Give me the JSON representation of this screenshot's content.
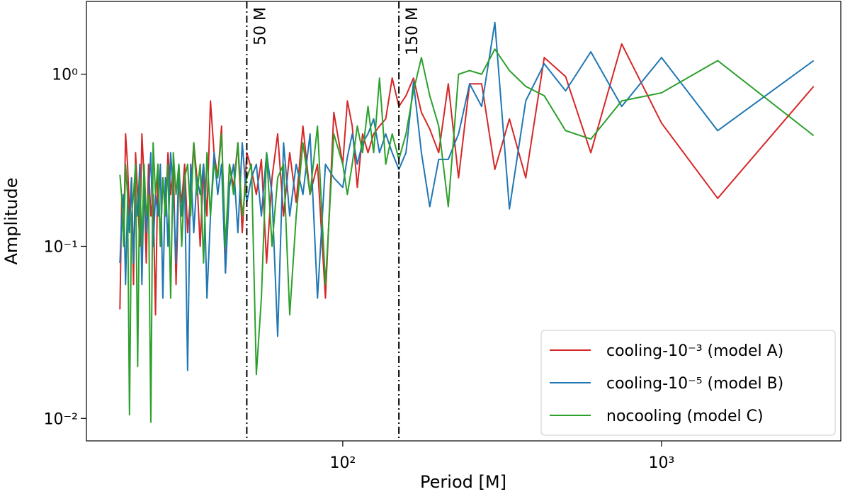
{
  "chart_data": {
    "type": "line",
    "xlabel": "Period [M]",
    "ylabel": "Amplitude",
    "xscale": "log",
    "yscale": "log",
    "xlim": [
      15.7,
      3650
    ],
    "ylim": [
      0.0074,
      2.65
    ],
    "xticks": [
      {
        "value": 100,
        "label": "10²"
      },
      {
        "value": 1000,
        "label": "10³"
      }
    ],
    "yticks": [
      {
        "value": 0.01,
        "label": "10⁻²"
      },
      {
        "value": 0.1,
        "label": "10⁻¹"
      },
      {
        "value": 1,
        "label": "10⁰"
      }
    ],
    "legend": "lower right",
    "vlines": [
      {
        "x": 50,
        "label": "50 M"
      },
      {
        "x": 150,
        "label": "150 M"
      }
    ],
    "x": [
      3000,
      1500,
      1000,
      750,
      600,
      500,
      428.6,
      375,
      333.3,
      300,
      272.7,
      250,
      230.8,
      214.3,
      200,
      187.5,
      176.5,
      166.7,
      157.9,
      150,
      142.9,
      136.4,
      130.4,
      125,
      120,
      115.4,
      111.1,
      107.1,
      103.4,
      100,
      93.75,
      88.24,
      83.33,
      78.95,
      75,
      71.43,
      68.18,
      65.22,
      62.5,
      60,
      57.69,
      55.56,
      53.57,
      51.72,
      50,
      48.39,
      46.88,
      45.45,
      44.12,
      42.86,
      41.67,
      40.54,
      39.47,
      38.46,
      37.5,
      36.59,
      35.71,
      34.88,
      34.09,
      33.33,
      32.61,
      31.91,
      31.25,
      30.61,
      30,
      29.41,
      28.85,
      28.3,
      27.78,
      27.27,
      26.79,
      26.32,
      25.86,
      25.42,
      25,
      24.59,
      24.19,
      23.81,
      23.44,
      23.08,
      22.73,
      22.39,
      22.06,
      21.74,
      21.43,
      21.13,
      20.83,
      20.55,
      20.27,
      20
    ],
    "series": [
      {
        "name": "cooling-10⁻³ (model A)",
        "color": "#d62728",
        "values": [
          0.85,
          0.19,
          0.52,
          1.5,
          0.35,
          0.97,
          1.25,
          0.25,
          0.55,
          0.28,
          0.88,
          0.88,
          0.25,
          0.88,
          0.35,
          0.48,
          0.6,
          0.95,
          0.75,
          0.65,
          0.95,
          0.55,
          0.5,
          0.45,
          0.35,
          0.45,
          0.22,
          0.5,
          0.7,
          0.3,
          0.6,
          0.05,
          0.3,
          0.2,
          0.5,
          0.18,
          0.35,
          0.15,
          0.45,
          0.25,
          0.08,
          0.32,
          0.2,
          0.28,
          0.35,
          0.12,
          0.4,
          0.22,
          0.3,
          0.07,
          0.5,
          0.25,
          0.35,
          0.7,
          0.15,
          0.3,
          0.1,
          0.25,
          0.4,
          0.2,
          0.12,
          0.3,
          0.18,
          0.25,
          0.06,
          0.3,
          0.2,
          0.35,
          0.15,
          0.25,
          0.1,
          0.3,
          0.04,
          0.2,
          0.15,
          0.3,
          0.08,
          0.25,
          0.45,
          0.1,
          0.2,
          0.35,
          0.06,
          0.25,
          0.15,
          0.3,
          0.45,
          0.1,
          0.2,
          0.043
        ]
      },
      {
        "name": "cooling-10⁻⁵ (model B)",
        "color": "#1f77b4",
        "values": [
          1.2,
          0.47,
          1.25,
          0.65,
          1.35,
          0.8,
          1.15,
          0.7,
          0.165,
          2.0,
          0.65,
          0.88,
          0.45,
          0.32,
          0.32,
          0.17,
          0.35,
          0.9,
          0.35,
          0.28,
          0.35,
          0.45,
          0.35,
          0.55,
          0.45,
          0.4,
          0.3,
          0.45,
          0.33,
          0.22,
          0.25,
          0.3,
          0.05,
          0.45,
          0.2,
          0.3,
          0.15,
          0.4,
          0.03,
          0.2,
          0.35,
          0.15,
          0.3,
          0.25,
          0.18,
          0.4,
          0.12,
          0.3,
          0.22,
          0.07,
          0.3,
          0.2,
          0.35,
          0.15,
          0.05,
          0.3,
          0.2,
          0.25,
          0.12,
          0.3,
          0.019,
          0.25,
          0.15,
          0.3,
          0.08,
          0.2,
          0.35,
          0.1,
          0.25,
          0.05,
          0.3,
          0.15,
          0.2,
          0.1,
          0.35,
          0.2,
          0.12,
          0.25,
          0.06,
          0.3,
          0.15,
          0.2,
          0.08,
          0.25,
          0.12,
          0.18,
          0.06,
          0.2,
          0.15,
          0.08
        ]
      },
      {
        "name": "nocooling (model C)",
        "color": "#2ca02c",
        "values": [
          0.44,
          1.2,
          0.78,
          0.7,
          0.42,
          0.47,
          0.75,
          0.85,
          1.05,
          1.4,
          1.0,
          1.05,
          1.0,
          0.17,
          0.5,
          0.75,
          1.25,
          0.8,
          0.45,
          0.32,
          0.45,
          0.3,
          0.95,
          0.35,
          0.65,
          0.35,
          0.5,
          0.3,
          0.2,
          0.3,
          0.45,
          0.06,
          0.5,
          0.2,
          0.4,
          0.15,
          0.04,
          0.3,
          0.25,
          0.1,
          0.35,
          0.05,
          0.018,
          0.3,
          0.25,
          0.15,
          0.4,
          0.2,
          0.3,
          0.1,
          0.45,
          0.25,
          0.3,
          0.15,
          0.35,
          0.08,
          0.3,
          0.2,
          0.4,
          0.15,
          0.3,
          0.25,
          0.1,
          0.3,
          0.2,
          0.35,
          0.05,
          0.3,
          0.15,
          0.25,
          0.1,
          0.3,
          0.2,
          0.4,
          0.0095,
          0.2,
          0.15,
          0.3,
          0.1,
          0.25,
          0.02,
          0.3,
          0.2,
          0.15,
          0.0105,
          0.2,
          0.3,
          0.1,
          0.19,
          0.26
        ]
      }
    ]
  }
}
